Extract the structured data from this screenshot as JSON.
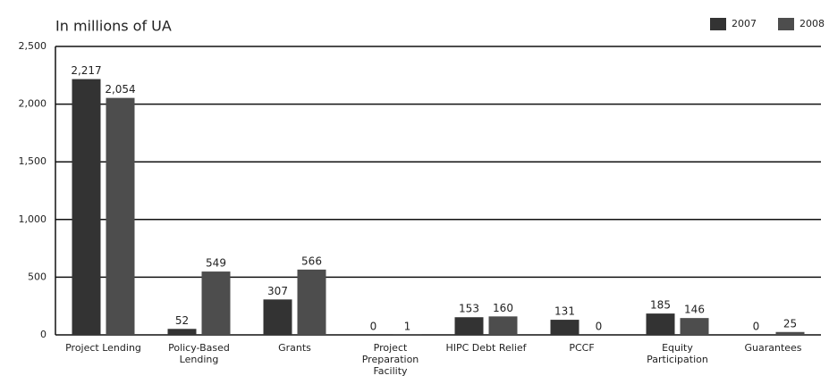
{
  "chart_data": {
    "type": "bar",
    "title": "In millions of UA",
    "categories": [
      "Project Lending",
      "Policy-Based Lending",
      "Grants",
      "Project Preparation Facility",
      "HIPC Debt Relief",
      "PCCF",
      "Equity Participation",
      "Guarantees"
    ],
    "series": [
      {
        "name": "2007",
        "color": "#333333",
        "values": [
          2217,
          52,
          307,
          0,
          153,
          131,
          185,
          0
        ],
        "value_labels": [
          "2,217",
          "52",
          "307",
          "0",
          "153",
          "131",
          "185",
          "0"
        ]
      },
      {
        "name": "2008",
        "color": "#4d4d4d",
        "values": [
          2054,
          549,
          566,
          1,
          160,
          0,
          146,
          25
        ],
        "value_labels": [
          "2,054",
          "549",
          "566",
          "1",
          "160",
          "0",
          "146",
          "25"
        ]
      }
    ],
    "ylim": [
      0,
      2500
    ],
    "yticks": [
      0,
      500,
      {
        "value": 1000,
        "label": "1,000"
      },
      {
        "value": 1500,
        "label": "1,500"
      },
      {
        "value": 2000,
        "label": "2,000"
      },
      {
        "value": 2500,
        "label": "2,500"
      }
    ],
    "grid": true,
    "legend": "top-right"
  }
}
